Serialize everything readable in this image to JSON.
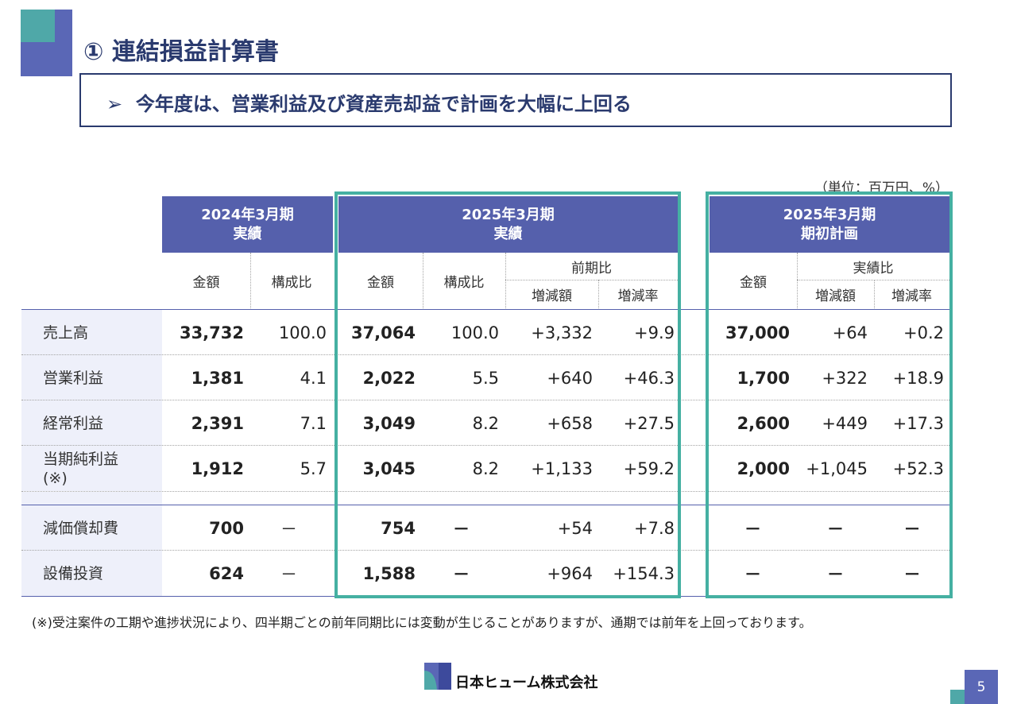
{
  "header": {
    "title": "① 連結損益計算書",
    "subtitle_marker": "➢",
    "subtitle": "今年度は、営業利益及び資産売却益で計画を大幅に上回る"
  },
  "unit": "（単位：百万円、%）",
  "columns": {
    "fy2024_actual": {
      "line1": "2024年3月期",
      "line2": "実績"
    },
    "fy2025_actual": {
      "line1": "2025年3月期",
      "line2": "実績"
    },
    "fy2025_plan": {
      "line1": "2025年3月期",
      "line2": "期初計画"
    },
    "amount": "金額",
    "ratio": "構成比",
    "yoy": "前期比",
    "vs_actual": "実績比",
    "change_amount": "増減額",
    "change_rate": "増減率"
  },
  "rows": [
    {
      "label": "売上高",
      "a24": "33,732",
      "r24": "100.0",
      "a25": "37,064",
      "r25": "100.0",
      "yoy_amt": "+3,332",
      "yoy_rate": "+9.9",
      "plan": "37,000",
      "pl_amt": "+64",
      "pl_rate": "+0.2"
    },
    {
      "label": "営業利益",
      "a24": "1,381",
      "r24": "4.1",
      "a25": "2,022",
      "r25": "5.5",
      "yoy_amt": "+640",
      "yoy_rate": "+46.3",
      "plan": "1,700",
      "pl_amt": "+322",
      "pl_rate": "+18.9"
    },
    {
      "label": "経常利益",
      "a24": "2,391",
      "r24": "7.1",
      "a25": "3,049",
      "r25": "8.2",
      "yoy_amt": "+658",
      "yoy_rate": "+27.5",
      "plan": "2,600",
      "pl_amt": "+449",
      "pl_rate": "+17.3"
    },
    {
      "label": "当期純利益\n(※)",
      "a24": "1,912",
      "r24": "5.7",
      "a25": "3,045",
      "r25": "8.2",
      "yoy_amt": "+1,133",
      "yoy_rate": "+59.2",
      "plan": "2,000",
      "pl_amt": "+1,045",
      "pl_rate": "+52.3"
    },
    {
      "label": "減価償却費",
      "a24": "700",
      "r24": "－",
      "a25": "754",
      "r25": "－",
      "yoy_amt": "+54",
      "yoy_rate": "+7.8",
      "plan": "－",
      "pl_amt": "－",
      "pl_rate": "－"
    },
    {
      "label": "設備投資",
      "a24": "624",
      "r24": "－",
      "a25": "1,588",
      "r25": "－",
      "yoy_amt": "+964",
      "yoy_rate": "+154.3",
      "plan": "－",
      "pl_amt": "－",
      "pl_rate": "－"
    }
  ],
  "note": "(※)受注案件の工期や進捗状況により、四半期ごとの前年同期比には変動が生じることがありますが、通期では前年を上回っております。",
  "footer": {
    "company": "日本ヒューム株式会社",
    "page": "5"
  },
  "colors": {
    "header_bg": "#5560ac",
    "highlight_frame": "#45b0a2",
    "row_label_bg": "#eef0fa",
    "title_text": "#2a3a6e"
  }
}
